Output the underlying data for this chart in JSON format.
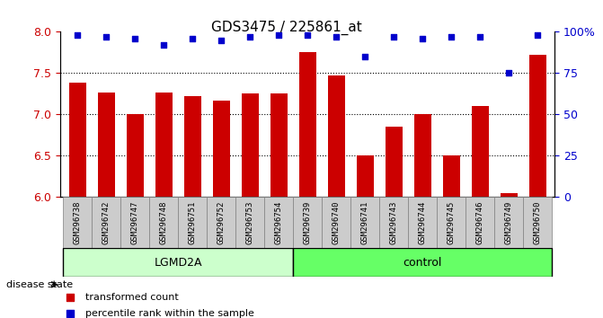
{
  "title": "GDS3475 / 225861_at",
  "samples": [
    "GSM296738",
    "GSM296742",
    "GSM296747",
    "GSM296748",
    "GSM296751",
    "GSM296752",
    "GSM296753",
    "GSM296754",
    "GSM296739",
    "GSM296740",
    "GSM296741",
    "GSM296743",
    "GSM296744",
    "GSM296745",
    "GSM296746",
    "GSM296749",
    "GSM296750"
  ],
  "bar_values": [
    7.38,
    7.27,
    7.0,
    7.27,
    7.22,
    7.17,
    7.25,
    7.25,
    7.75,
    7.47,
    6.5,
    6.85,
    7.0,
    6.5,
    7.1,
    6.05,
    7.72
  ],
  "percentile_values": [
    98,
    97,
    96,
    92,
    96,
    95,
    97,
    98,
    98,
    97,
    85,
    97,
    96,
    97,
    97,
    75,
    98
  ],
  "bar_color": "#cc0000",
  "dot_color": "#0000cc",
  "ylim_left": [
    6,
    8
  ],
  "ylim_right": [
    0,
    100
  ],
  "yticks_left": [
    6,
    6.5,
    7,
    7.5,
    8
  ],
  "yticks_right": [
    0,
    25,
    50,
    75,
    100
  ],
  "ytick_labels_right": [
    "0",
    "25",
    "50",
    "75",
    "100%"
  ],
  "group1_label": "LGMD2A",
  "group2_label": "control",
  "group1_count": 8,
  "group2_count": 9,
  "disease_state_label": "disease state",
  "legend_bar_label": "transformed count",
  "legend_dot_label": "percentile rank within the sample",
  "group1_color": "#ccffcc",
  "group2_color": "#66ff66",
  "xlabel_color": "#cc0000",
  "ylabel_right_color": "#0000cc",
  "bar_width": 0.6,
  "dotted_grid_lines": [
    6.5,
    7.0,
    7.5
  ]
}
